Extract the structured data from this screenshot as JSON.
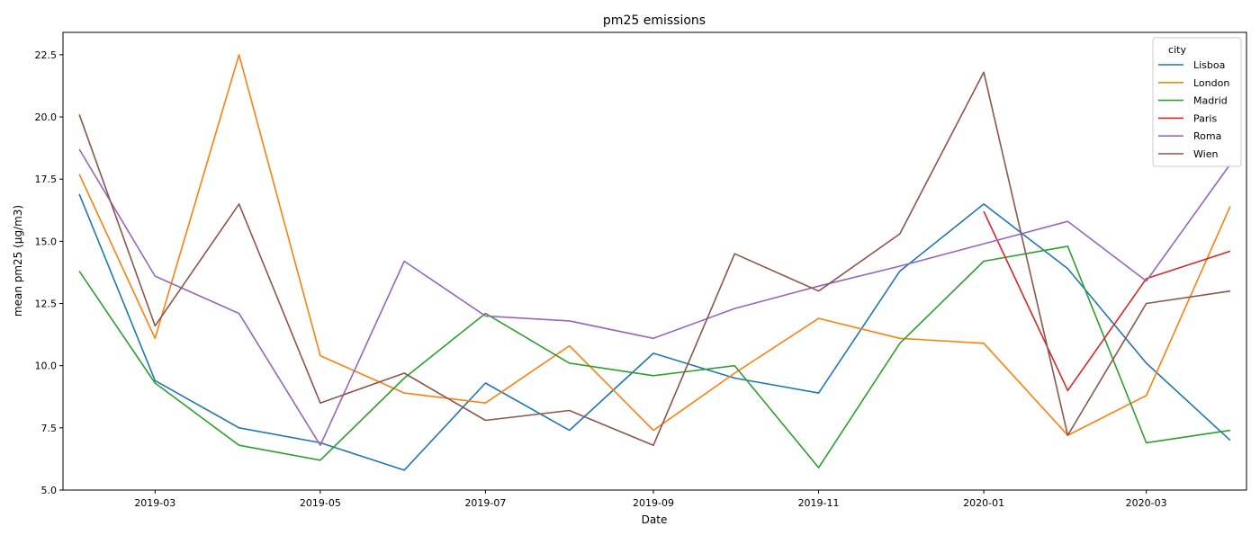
{
  "chart_data": {
    "type": "line",
    "title": "pm25 emissions",
    "xlabel": "Date",
    "ylabel": "mean pm25 (µg/m3)",
    "x": [
      "2019-02-01",
      "2019-03-01",
      "2019-04-01",
      "2019-05-01",
      "2019-06-01",
      "2019-07-01",
      "2019-08-01",
      "2019-09-01",
      "2019-10-01",
      "2019-11-01",
      "2019-12-01",
      "2020-01-01",
      "2020-02-01",
      "2020-03-01",
      "2020-04-01"
    ],
    "x_ticks": [
      "2019-03",
      "2019-05",
      "2019-07",
      "2019-09",
      "2019-11",
      "2020-01",
      "2020-03"
    ],
    "y_ticks": [
      "5.0",
      "7.5",
      "10.0",
      "12.5",
      "15.0",
      "17.5",
      "20.0",
      "22.5"
    ],
    "ylim": [
      5.0,
      23.4
    ],
    "grid": false,
    "legend": {
      "title": "city",
      "placement": "top-right"
    },
    "series": [
      {
        "name": "Lisboa",
        "color": "#1f77b4",
        "values": [
          16.9,
          9.4,
          7.5,
          6.9,
          5.8,
          9.3,
          7.4,
          10.5,
          9.5,
          8.9,
          13.8,
          16.5,
          13.9,
          10.1,
          7.0
        ]
      },
      {
        "name": "London",
        "color": "#ff7f0e",
        "values": [
          17.7,
          11.1,
          22.5,
          10.4,
          8.9,
          8.5,
          10.8,
          7.4,
          9.7,
          11.9,
          11.1,
          10.9,
          7.2,
          8.8,
          16.4
        ]
      },
      {
        "name": "Madrid",
        "color": "#2ca02c",
        "values": [
          13.8,
          9.3,
          6.8,
          6.2,
          9.5,
          12.1,
          10.1,
          9.6,
          10.0,
          5.9,
          10.9,
          14.2,
          14.8,
          6.9,
          7.4
        ]
      },
      {
        "name": "Paris",
        "color": "#d62728",
        "values": [
          null,
          null,
          null,
          null,
          null,
          null,
          null,
          null,
          null,
          null,
          null,
          16.2,
          9.0,
          13.5,
          14.6
        ]
      },
      {
        "name": "Roma",
        "color": "#9467bd",
        "values": [
          18.7,
          13.6,
          12.1,
          6.8,
          14.2,
          12.0,
          11.8,
          11.1,
          12.3,
          13.2,
          14.0,
          14.9,
          15.8,
          13.4,
          18.1
        ]
      },
      {
        "name": "Wien",
        "color": "#8c564b",
        "values": [
          20.1,
          11.6,
          16.5,
          8.5,
          9.7,
          7.8,
          8.2,
          6.8,
          14.5,
          13.0,
          15.3,
          21.8,
          7.2,
          12.5,
          13.0
        ]
      }
    ]
  }
}
